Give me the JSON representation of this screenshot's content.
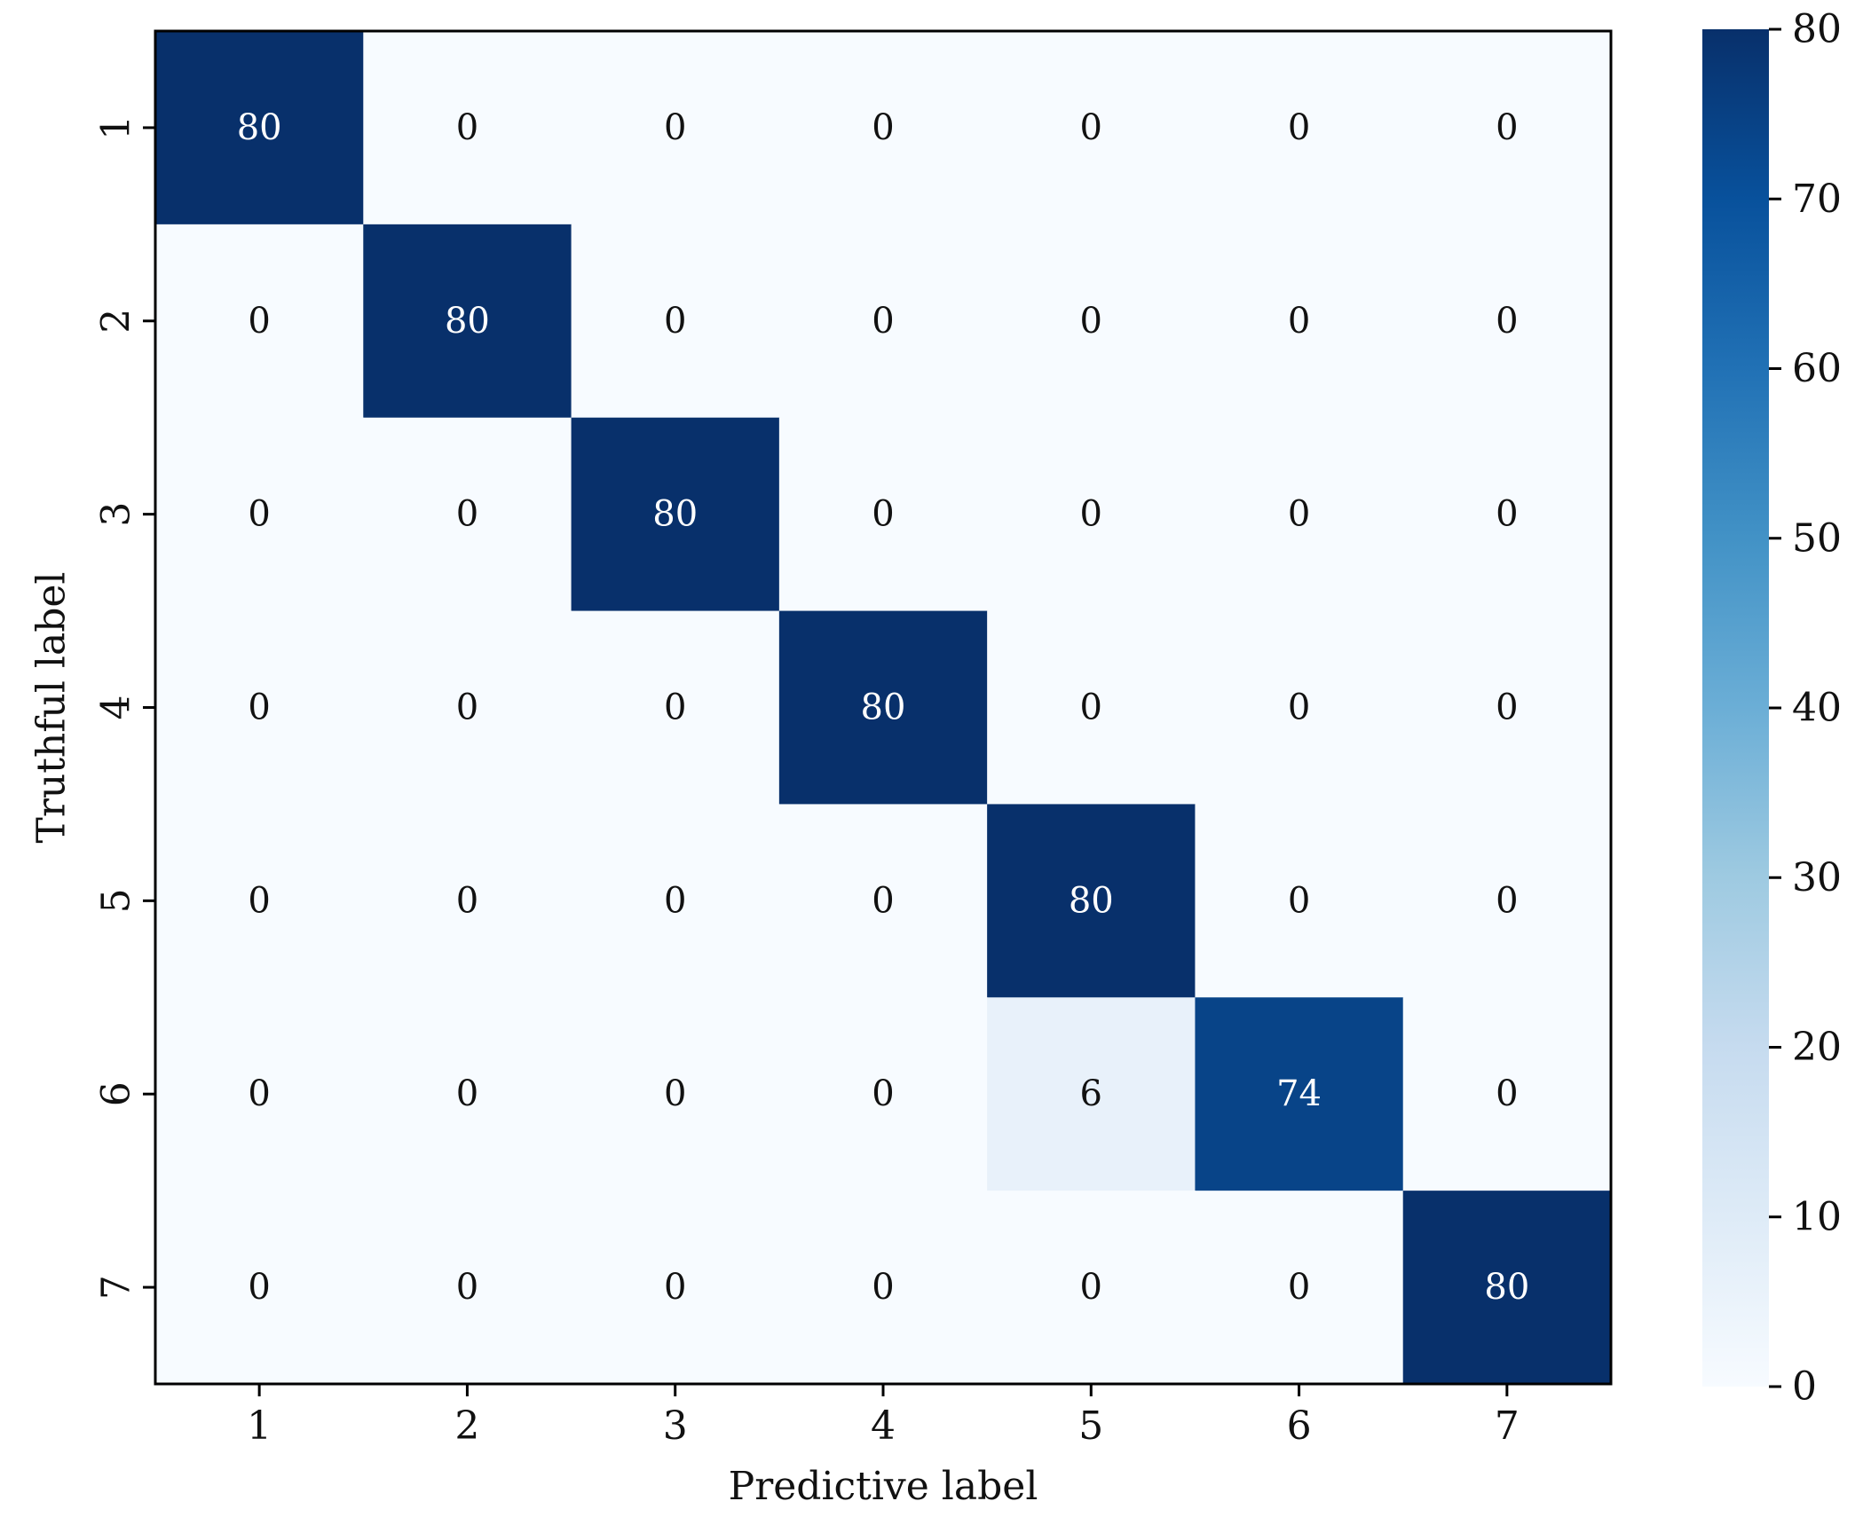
{
  "chart_data": {
    "type": "heatmap",
    "title": "",
    "xlabel": "Predictive label",
    "ylabel": "Truthful label",
    "x_categories": [
      "1",
      "2",
      "3",
      "4",
      "5",
      "6",
      "7"
    ],
    "y_categories": [
      "1",
      "2",
      "3",
      "4",
      "5",
      "6",
      "7"
    ],
    "values": [
      [
        80,
        0,
        0,
        0,
        0,
        0,
        0
      ],
      [
        0,
        80,
        0,
        0,
        0,
        0,
        0
      ],
      [
        0,
        0,
        80,
        0,
        0,
        0,
        0
      ],
      [
        0,
        0,
        0,
        80,
        0,
        0,
        0
      ],
      [
        0,
        0,
        0,
        0,
        80,
        0,
        0
      ],
      [
        0,
        0,
        0,
        0,
        6,
        74,
        0
      ],
      [
        0,
        0,
        0,
        0,
        0,
        0,
        80
      ]
    ],
    "colorbar": {
      "min": 0,
      "max": 80,
      "ticks": [
        0,
        10,
        20,
        30,
        40,
        50,
        60,
        70,
        80
      ]
    },
    "colormap": [
      "#f7fbff",
      "#deebf7",
      "#c6dbef",
      "#9ecae1",
      "#6baed6",
      "#4292c6",
      "#2171b5",
      "#08519c",
      "#08306b"
    ],
    "grid": false,
    "legend": "none"
  }
}
